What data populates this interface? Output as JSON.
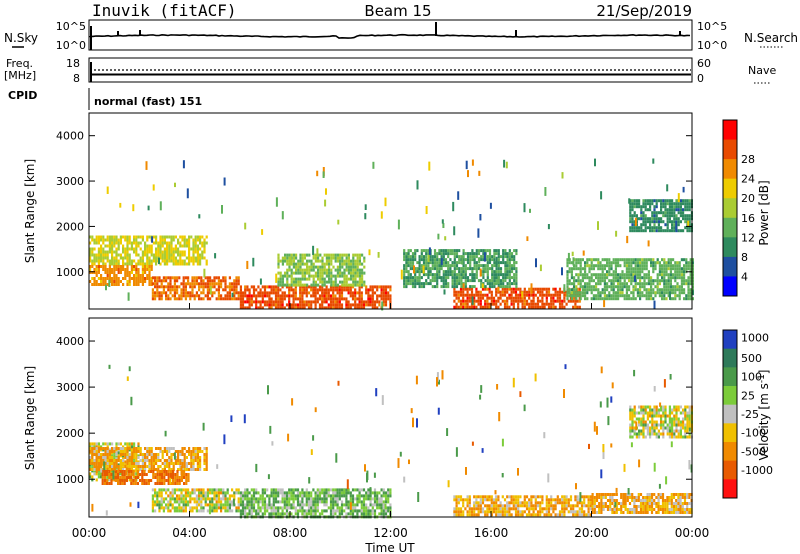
{
  "header": {
    "radar_title": "Inuvik (fitACF)",
    "beam": "Beam 15",
    "date": "21/Sep/2019"
  },
  "nsky_panel": {
    "left_label": "N.Sky",
    "right_label": "N.Search",
    "left_ticks": [
      "10^5",
      "10^0"
    ],
    "right_ticks": [
      "10^5",
      "10^0"
    ]
  },
  "freq_panel": {
    "left_label_line1": "Freq.",
    "left_label_line2": "[MHz]",
    "right_label": "Nave",
    "left_ticks": [
      "18",
      "8"
    ],
    "right_ticks": [
      "60",
      "0"
    ]
  },
  "cpid": {
    "label": "CPID",
    "value": "normal (fast) 151"
  },
  "colors": {
    "power_scale": [
      "#0000ff",
      "#1e4fa0",
      "#2e8a5e",
      "#5fb05a",
      "#aacc33",
      "#eecc00",
      "#f08a00",
      "#e84a00",
      "#ff0000"
    ],
    "velocity_scale": [
      "#2040c0",
      "#2e7a5a",
      "#4a9a4a",
      "#7ccc3a",
      "#c0c0c0",
      "#f0c000",
      "#f08a00",
      "#e85a00",
      "#ff1010"
    ],
    "ground_scatter": "#c0c0c0"
  },
  "chart_data": [
    {
      "type": "heatmap",
      "panel": "power",
      "xlabel": "",
      "ylabel": "Slant Range [km]",
      "ylim": [
        180,
        4500
      ],
      "yticks": [
        "1000",
        "2000",
        "3000",
        "4000"
      ],
      "colorbar": {
        "label": "Power [dB]",
        "range": [
          0,
          32
        ],
        "ticks": [
          "4",
          "8",
          "12",
          "16",
          "20",
          "24",
          "28"
        ]
      },
      "bands": [
        {
          "t_start": 0.0,
          "t_end": 4.7,
          "r_start": 1200,
          "r_end": 1800,
          "value": 20
        },
        {
          "t_start": 0.0,
          "t_end": 2.5,
          "r_start": 700,
          "r_end": 1150,
          "value": 26
        },
        {
          "t_start": 2.5,
          "t_end": 6.0,
          "r_start": 400,
          "r_end": 900,
          "value": 28
        },
        {
          "t_start": 6.0,
          "t_end": 12.0,
          "r_start": 200,
          "r_end": 700,
          "value": 30
        },
        {
          "t_start": 14.5,
          "t_end": 19.5,
          "r_start": 200,
          "r_end": 650,
          "value": 30
        },
        {
          "t_start": 19.0,
          "t_end": 24.0,
          "r_start": 400,
          "r_end": 1300,
          "value": 14
        },
        {
          "t_start": 21.5,
          "t_end": 24.0,
          "r_start": 1900,
          "r_end": 2600,
          "value": 10
        },
        {
          "t_start": 7.5,
          "t_end": 11.0,
          "r_start": 700,
          "r_end": 1400,
          "value": 16
        },
        {
          "t_start": 12.5,
          "t_end": 17.0,
          "r_start": 700,
          "r_end": 1500,
          "value": 12
        }
      ]
    },
    {
      "type": "heatmap",
      "panel": "velocity",
      "xlabel": "Time UT",
      "ylabel": "Slant Range [km]",
      "ylim": [
        180,
        4500
      ],
      "xlim": [
        "00:00",
        "24:00"
      ],
      "xticks": [
        "00:00",
        "04:00",
        "08:00",
        "12:00",
        "16:00",
        "20:00",
        "00:00"
      ],
      "yticks": [
        "1000",
        "2000",
        "3000",
        "4000"
      ],
      "colorbar": {
        "label": "Velocity [m s^-1]",
        "ticks": [
          "1000",
          "500",
          "100",
          "25",
          "-25",
          "-100",
          "-500",
          "-1000"
        ]
      },
      "bands": [
        {
          "t_start": 0.0,
          "t_end": 2.0,
          "r_start": 1000,
          "r_end": 1800,
          "value": 0
        },
        {
          "t_start": 0.0,
          "t_end": 4.7,
          "r_start": 1200,
          "r_end": 1700,
          "value": -100
        },
        {
          "t_start": 0.5,
          "t_end": 4.0,
          "r_start": 900,
          "r_end": 1200,
          "value": -500
        },
        {
          "t_start": 2.5,
          "t_end": 6.0,
          "r_start": 300,
          "r_end": 800,
          "value": 0
        },
        {
          "t_start": 6.0,
          "t_end": 12.0,
          "r_start": 200,
          "r_end": 800,
          "value": 100
        },
        {
          "t_start": 14.5,
          "t_end": 20.0,
          "r_start": 250,
          "r_end": 650,
          "value": -100
        },
        {
          "t_start": 20.0,
          "t_end": 24.0,
          "r_start": 300,
          "r_end": 700,
          "value": -100
        },
        {
          "t_start": 21.5,
          "t_end": 24.0,
          "r_start": 1900,
          "r_end": 2600,
          "value": 0
        }
      ]
    }
  ]
}
